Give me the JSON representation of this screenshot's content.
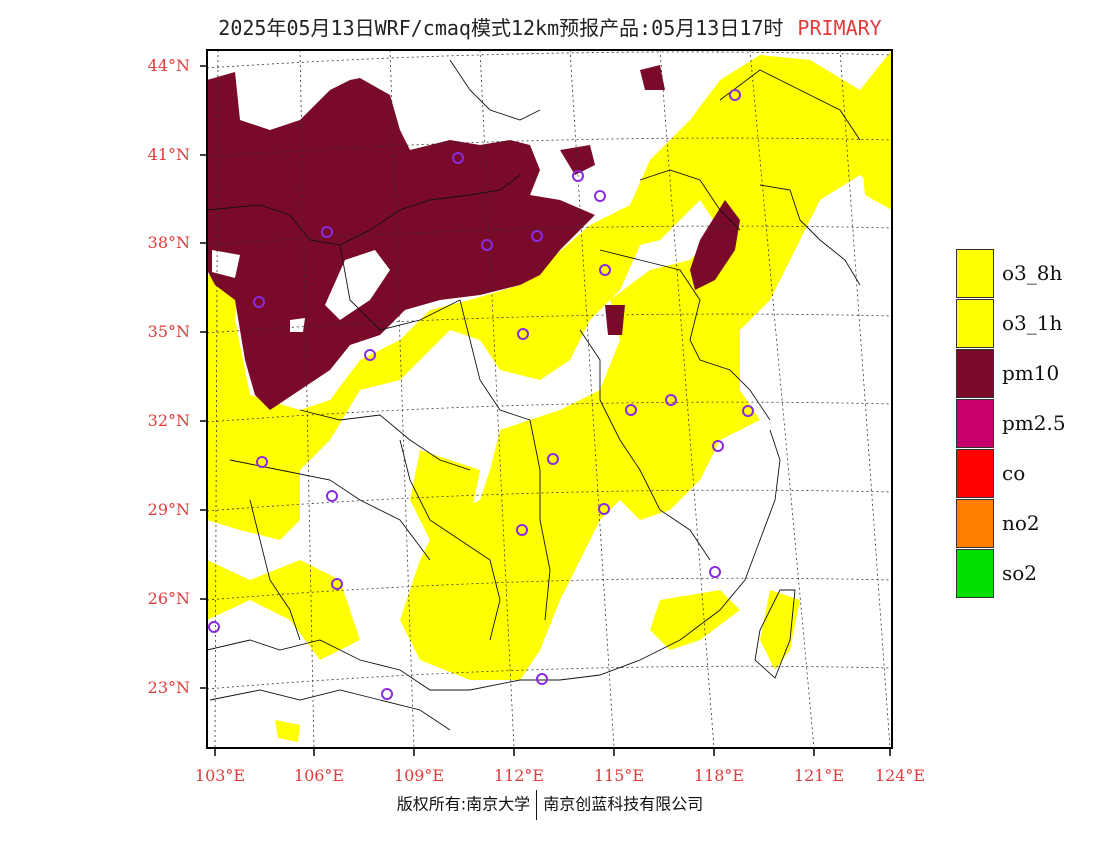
{
  "header": {
    "title": "2025年05月13日WRF/cmaq模式12km预报产品:05月13日17时",
    "pollutant_tag": "PRIMARY"
  },
  "map": {
    "lat_ticks": [
      "44°N",
      "41°N",
      "38°N",
      "35°N",
      "32°N",
      "29°N",
      "26°N",
      "23°N"
    ],
    "lon_ticks": [
      "103°E",
      "106°E",
      "109°E",
      "112°E",
      "115°E",
      "118°E",
      "121°E",
      "124°E"
    ],
    "colors": {
      "pm10": "#7a0a2a",
      "o3": "#ffff00",
      "station_marker": "#8a2be2",
      "tick_text": "#e23b3b"
    }
  },
  "legend": [
    {
      "label": "o3_8h",
      "color": "#ffff00"
    },
    {
      "label": "o3_1h",
      "color": "#ffff00"
    },
    {
      "label": "pm10",
      "color": "#7a0a2a"
    },
    {
      "label": "pm2.5",
      "color": "#c8006e"
    },
    {
      "label": "co",
      "color": "#ff0000"
    },
    {
      "label": "no2",
      "color": "#ff7f00"
    },
    {
      "label": "so2",
      "color": "#00e000"
    }
  ],
  "footer": {
    "left": "版权所有:南京大学",
    "right": "南京创蓝科技有限公司"
  }
}
